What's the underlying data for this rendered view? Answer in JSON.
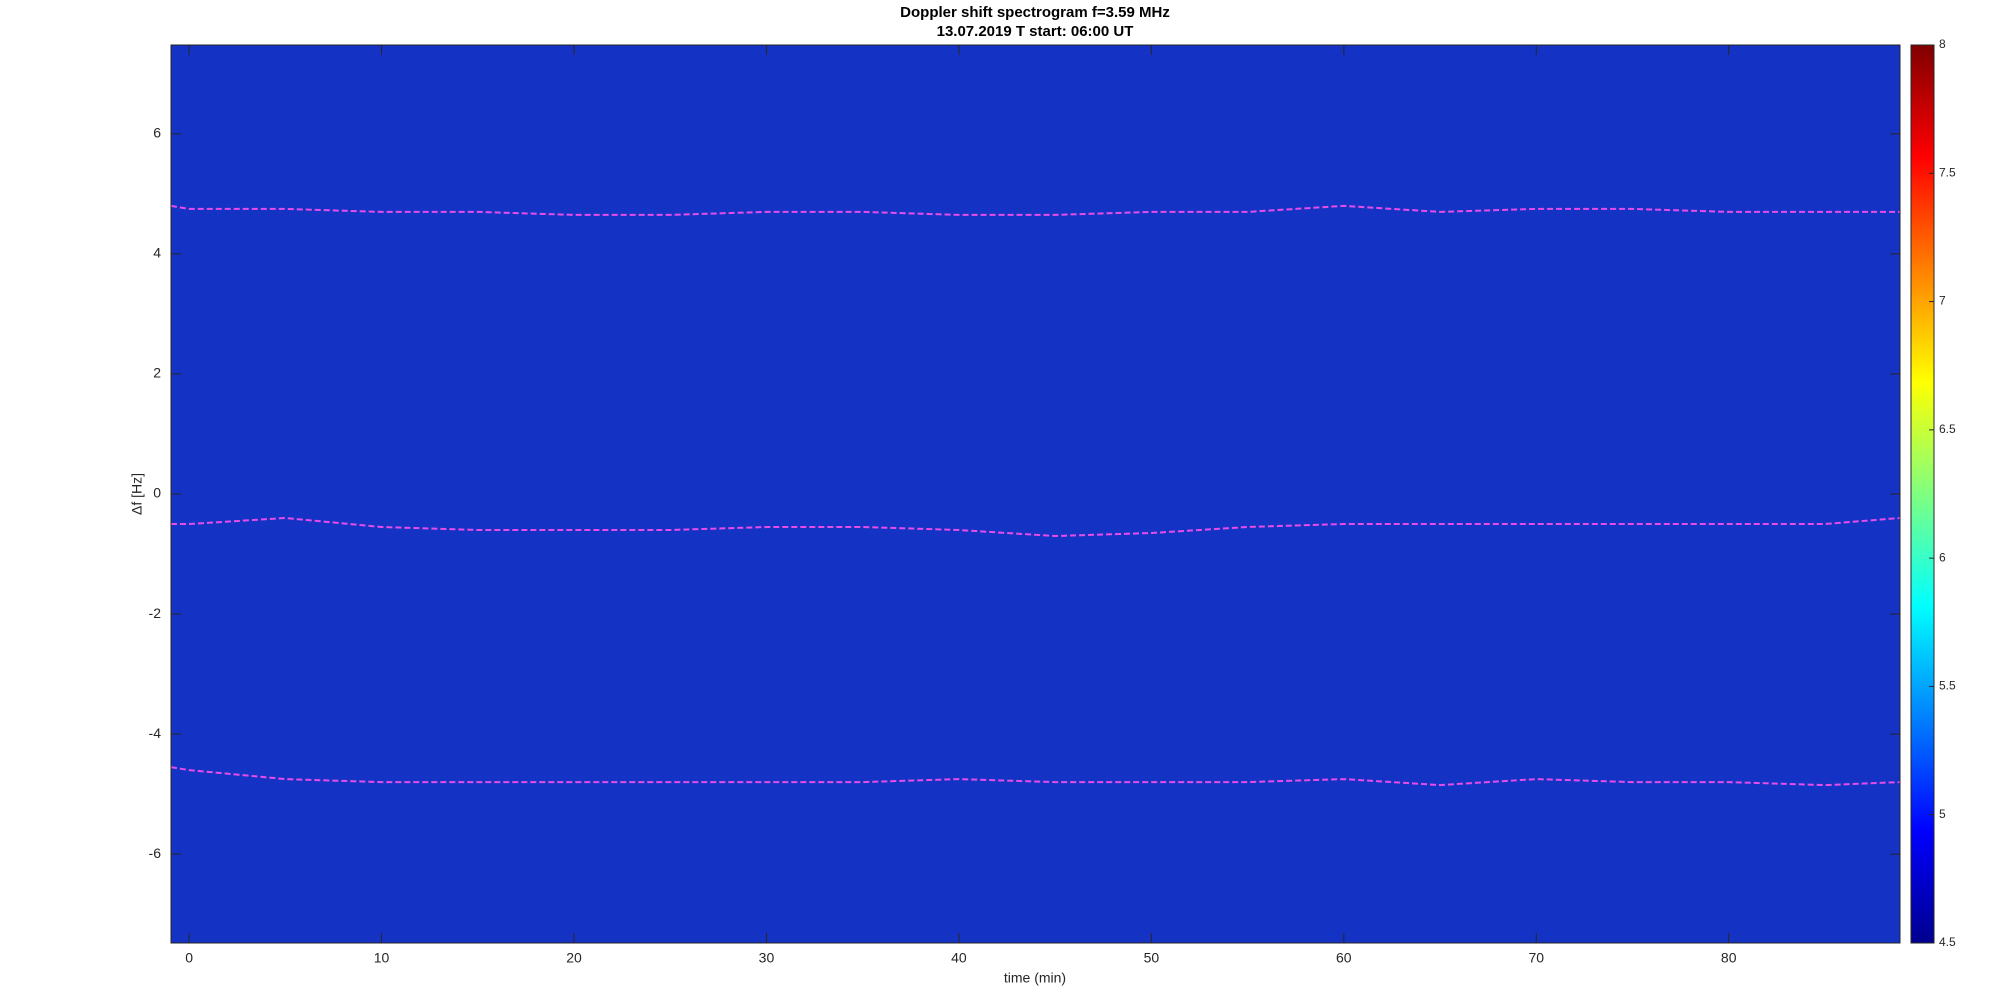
{
  "chart_data": {
    "type": "spectrogram",
    "title": "Doppler shift spectrogram f=3.59 MHz",
    "subtitle": "13.07.2019    T start: 06:00 UT",
    "x_label": "time (min)",
    "y_label": "Δf [Hz]",
    "xlim": [
      -0.94,
      88.9
    ],
    "ylim": [
      -7.48,
      7.48
    ],
    "xticks": [
      0,
      10,
      20,
      30,
      40,
      50,
      60,
      70,
      80
    ],
    "yticks": [
      -6,
      -4,
      -2,
      0,
      2,
      4,
      6
    ],
    "background_color": "#1433c4",
    "x": [
      -0.94,
      0,
      5,
      10,
      15,
      20,
      25,
      30,
      35,
      40,
      45,
      50,
      55,
      60,
      65,
      70,
      75,
      80,
      85,
      88.9
    ],
    "series": [
      {
        "color": "#e84ce8",
        "values": [
          4.8,
          4.75,
          4.75,
          4.7,
          4.7,
          4.65,
          4.65,
          4.7,
          4.7,
          4.65,
          4.65,
          4.7,
          4.7,
          4.8,
          4.7,
          4.75,
          4.75,
          4.7,
          4.7,
          4.7
        ]
      },
      {
        "color": "#e84ce8",
        "values": [
          -0.5,
          -0.5,
          -0.4,
          -0.55,
          -0.6,
          -0.6,
          -0.6,
          -0.55,
          -0.55,
          -0.6,
          -0.7,
          -0.65,
          -0.55,
          -0.5,
          -0.5,
          -0.5,
          -0.5,
          -0.5,
          -0.5,
          -0.4
        ]
      },
      {
        "color": "#e84ce8",
        "values": [
          -4.55,
          -4.6,
          -4.75,
          -4.8,
          -4.8,
          -4.8,
          -4.8,
          -4.8,
          -4.8,
          -4.75,
          -4.8,
          -4.8,
          -4.8,
          -4.75,
          -4.85,
          -4.75,
          -4.8,
          -4.8,
          -4.85,
          -4.8
        ]
      }
    ],
    "colorbar": {
      "lim": [
        4.5,
        8
      ],
      "ticks": [
        4.5,
        5,
        5.5,
        6,
        6.5,
        7,
        7.5,
        8
      ],
      "colormap": [
        "#00008f",
        "#0000ff",
        "#0080ff",
        "#00ffff",
        "#80ff80",
        "#ffff00",
        "#ff8000",
        "#ff0000",
        "#800000"
      ]
    }
  }
}
